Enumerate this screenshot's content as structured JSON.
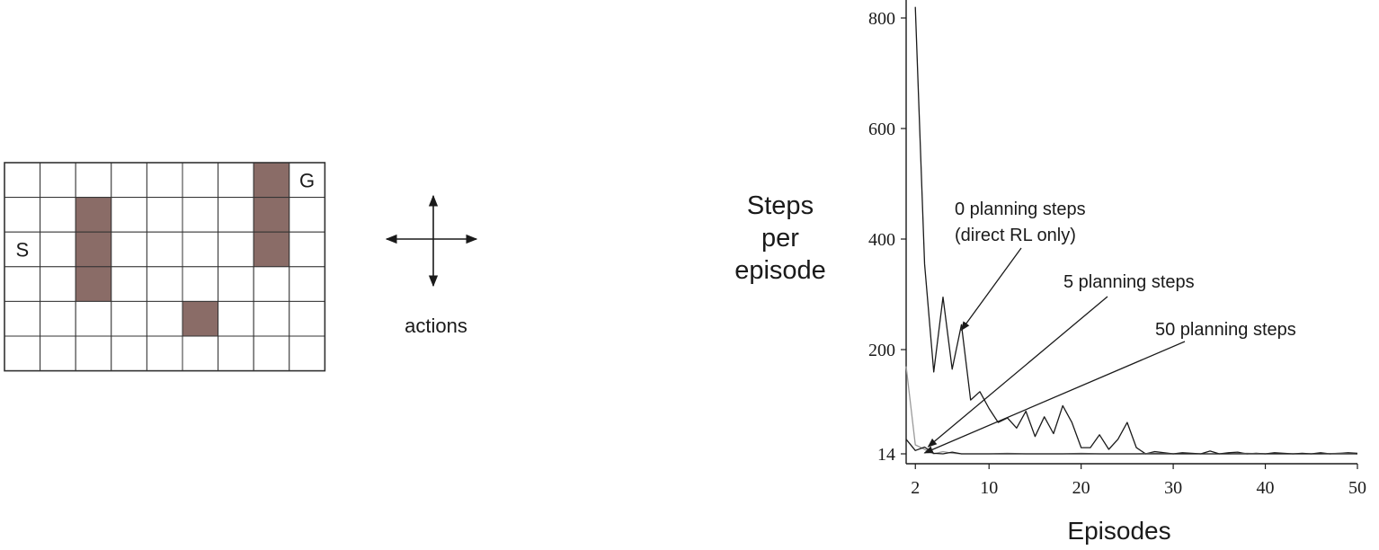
{
  "maze": {
    "rows": 6,
    "cols": 9,
    "walls": [
      [
        1,
        2
      ],
      [
        2,
        2
      ],
      [
        3,
        2
      ],
      [
        4,
        5
      ],
      [
        0,
        7
      ],
      [
        1,
        7
      ],
      [
        2,
        7
      ]
    ],
    "start": {
      "row": 2,
      "col": 0,
      "label": "S"
    },
    "goal": {
      "row": 0,
      "col": 8,
      "label": "G"
    },
    "wall_color": "#8a6c67",
    "line_color": "#333333"
  },
  "actions": {
    "label": "actions"
  },
  "chart_data": {
    "type": "line",
    "ylabel": [
      "Steps",
      "per",
      "episode"
    ],
    "xlabel": "Episodes",
    "xlim": [
      1,
      50
    ],
    "ylim": [
      0,
      820
    ],
    "xticks": [
      2,
      10,
      20,
      30,
      40,
      50
    ],
    "yticks": [
      14,
      200,
      400,
      600,
      800
    ],
    "line_color": "#1a1a1a",
    "series": [
      {
        "id": "planning-0",
        "name": "0 planning steps (direct RL only)",
        "color": "#1a1a1a",
        "x": [
          2,
          3,
          4,
          5,
          6,
          7,
          8,
          9,
          10,
          11,
          12,
          13,
          14,
          15,
          16,
          17,
          18,
          19,
          20,
          21,
          22,
          23,
          24,
          25,
          26,
          27,
          28,
          29,
          30,
          31,
          32,
          33,
          34,
          35,
          36,
          37,
          38,
          39,
          40,
          41,
          42,
          43,
          44,
          45,
          46,
          47,
          48,
          49,
          50
        ],
        "y": [
          820,
          355,
          160,
          295,
          165,
          245,
          110,
          125,
          95,
          70,
          78,
          60,
          90,
          45,
          80,
          50,
          100,
          70,
          25,
          25,
          48,
          22,
          40,
          70,
          25,
          14,
          18,
          16,
          14,
          16,
          15,
          14,
          19,
          14,
          16,
          17,
          14,
          15,
          14,
          16,
          15,
          14,
          15,
          14,
          16,
          14,
          15,
          16,
          15
        ]
      },
      {
        "id": "planning-5",
        "name": "5 planning steps",
        "color": "#9a9a9a",
        "x": [
          1,
          2,
          3,
          4,
          5,
          6,
          7,
          8,
          9,
          10,
          12,
          14,
          16,
          18,
          20,
          22,
          24,
          26,
          28,
          30,
          32,
          34,
          36,
          38,
          40,
          42,
          44,
          46,
          48,
          50
        ],
        "y": [
          170,
          30,
          22,
          14,
          18,
          15,
          14,
          14,
          14,
          14,
          15,
          14,
          14,
          14,
          15,
          14,
          14,
          14,
          15,
          14,
          14,
          14,
          14,
          15,
          14,
          14,
          14,
          14,
          15,
          14
        ]
      },
      {
        "id": "planning-50",
        "name": "50 planning steps",
        "color": "#1a1a1a",
        "x": [
          1,
          2,
          3,
          4,
          5,
          6,
          7,
          8,
          10,
          12,
          14,
          16,
          18,
          20,
          22,
          24,
          26,
          28,
          30,
          32,
          34,
          36,
          38,
          40,
          42,
          44,
          46,
          48,
          50
        ],
        "y": [
          40,
          20,
          26,
          15,
          14,
          17,
          14,
          14,
          14,
          14,
          14,
          14,
          14,
          14,
          14,
          14,
          14,
          14,
          14,
          14,
          14,
          14,
          14,
          14,
          14,
          14,
          14,
          14,
          14
        ]
      }
    ],
    "annotations": [
      {
        "id": "ann-0",
        "lines": [
          "0 planning steps",
          "(direct RL only)"
        ]
      },
      {
        "id": "ann-5",
        "lines": [
          "5 planning steps"
        ]
      },
      {
        "id": "ann-50",
        "lines": [
          "50 planning steps"
        ]
      }
    ]
  }
}
